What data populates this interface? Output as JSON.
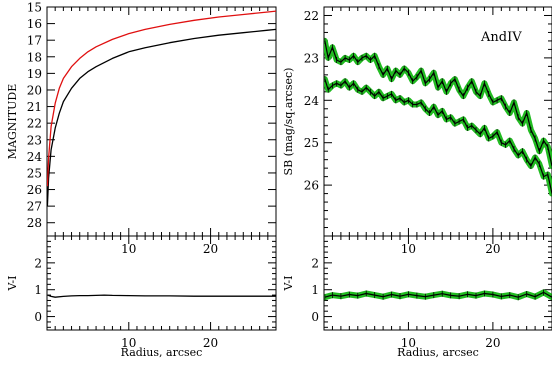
{
  "figure": {
    "legend_text": "AndIV",
    "colors": {
      "line_a": "#000000",
      "line_b": "#e01010",
      "profile_marker": "#22bb22",
      "profile_line": "#000000",
      "frame": "#000000"
    }
  },
  "chart_data": [
    {
      "id": "growth-curve",
      "type": "line",
      "title": "",
      "xlabel": "",
      "ylabel": "MAGNITUDE",
      "xlim": [
        0,
        28
      ],
      "ylim": [
        28.8,
        15
      ],
      "y_inverted": true,
      "x_ticks": [
        10,
        20
      ],
      "y_ticks": [
        15,
        16,
        17,
        18,
        19,
        20,
        21,
        22,
        23,
        24,
        25,
        26,
        27,
        28
      ],
      "series": [
        {
          "color": "#000000",
          "x": [
            0.05,
            0.2,
            0.5,
            1,
            1.5,
            2,
            3,
            4,
            5,
            6,
            8,
            10,
            12,
            15,
            18,
            21,
            24,
            27,
            28
          ],
          "y": [
            27.0,
            25.3,
            23.6,
            22.3,
            21.4,
            20.7,
            19.9,
            19.3,
            18.9,
            18.6,
            18.1,
            17.7,
            17.45,
            17.15,
            16.9,
            16.7,
            16.55,
            16.4,
            16.35
          ]
        },
        {
          "color": "#e01010",
          "x": [
            0.05,
            0.2,
            0.5,
            1,
            1.5,
            2,
            3,
            4,
            5,
            6,
            8,
            10,
            12,
            15,
            18,
            21,
            24,
            27,
            28
          ],
          "y": [
            25.8,
            24.1,
            22.2,
            20.8,
            19.9,
            19.3,
            18.6,
            18.1,
            17.7,
            17.4,
            16.95,
            16.6,
            16.35,
            16.05,
            15.8,
            15.6,
            15.45,
            15.3,
            15.25
          ]
        }
      ]
    },
    {
      "id": "color-curve",
      "type": "line",
      "title": "",
      "xlabel": "Radius, arcsec",
      "ylabel": "V-I",
      "xlim": [
        0,
        28
      ],
      "ylim": [
        -0.5,
        3
      ],
      "x_ticks": [
        10,
        20
      ],
      "y_ticks": [
        0,
        1,
        2
      ],
      "series": [
        {
          "color": "#000000",
          "x": [
            0.1,
            0.5,
            1,
            2,
            3,
            4,
            5,
            6,
            7,
            8,
            10,
            12,
            15,
            18,
            21,
            24,
            27,
            28
          ],
          "y": [
            0.8,
            0.75,
            0.72,
            0.75,
            0.77,
            0.78,
            0.78,
            0.79,
            0.8,
            0.79,
            0.78,
            0.77,
            0.77,
            0.76,
            0.76,
            0.76,
            0.76,
            0.76
          ]
        }
      ]
    },
    {
      "id": "surface-brightness",
      "type": "line",
      "title": "",
      "xlabel": "",
      "ylabel": "SB (mag/sq.arcsec)",
      "xlim": [
        0,
        27
      ],
      "ylim": [
        27.2,
        21.8
      ],
      "y_inverted": true,
      "x_ticks": [
        10,
        20
      ],
      "y_ticks": [
        22,
        23,
        24,
        25,
        26
      ],
      "legend": "top-right",
      "series": [
        {
          "color": "#000000",
          "marker_color": "#22bb22",
          "x": [
            0.1,
            0.5,
            1,
            1.5,
            2,
            2.5,
            3,
            3.5,
            4,
            4.5,
            5,
            5.5,
            6,
            6.5,
            7,
            7.5,
            8,
            8.5,
            9,
            9.5,
            10,
            10.5,
            11,
            11.5,
            12,
            12.5,
            13,
            13.5,
            14,
            14.5,
            15,
            15.5,
            16,
            16.5,
            17,
            17.5,
            18,
            18.5,
            19,
            19.5,
            20,
            20.5,
            21,
            21.5,
            22,
            22.5,
            23,
            23.5,
            24,
            24.5,
            25,
            25.5,
            26,
            26.5,
            27
          ],
          "y": [
            22.6,
            23.0,
            22.75,
            23.05,
            23.1,
            23.0,
            23.05,
            22.95,
            23.1,
            23.0,
            22.95,
            23.05,
            22.95,
            23.2,
            23.4,
            23.25,
            23.5,
            23.3,
            23.4,
            23.25,
            23.35,
            23.55,
            23.45,
            23.3,
            23.6,
            23.5,
            23.35,
            23.7,
            23.55,
            23.8,
            23.6,
            23.5,
            23.75,
            23.9,
            23.7,
            23.55,
            23.8,
            23.9,
            23.6,
            23.85,
            24.05,
            24.0,
            23.95,
            24.15,
            24.3,
            24.05,
            24.4,
            24.55,
            24.3,
            24.7,
            24.9,
            25.2,
            24.95,
            25.1,
            25.55
          ]
        },
        {
          "color": "#000000",
          "marker_color": "#22bb22",
          "x": [
            0.1,
            0.5,
            1,
            1.5,
            2,
            2.5,
            3,
            3.5,
            4,
            4.5,
            5,
            5.5,
            6,
            6.5,
            7,
            7.5,
            8,
            8.5,
            9,
            9.5,
            10,
            10.5,
            11,
            11.5,
            12,
            12.5,
            13,
            13.5,
            14,
            14.5,
            15,
            15.5,
            16,
            16.5,
            17,
            17.5,
            18,
            18.5,
            19,
            19.5,
            20,
            20.5,
            21,
            21.5,
            22,
            22.5,
            23,
            23.5,
            24,
            24.5,
            25,
            25.5,
            26,
            26.5,
            27
          ],
          "y": [
            23.5,
            23.75,
            23.65,
            23.6,
            23.65,
            23.55,
            23.7,
            23.6,
            23.75,
            23.8,
            23.7,
            23.8,
            23.9,
            23.8,
            23.95,
            23.9,
            23.85,
            24.0,
            23.95,
            24.05,
            24.0,
            24.1,
            24.1,
            24.05,
            24.2,
            24.3,
            24.15,
            24.35,
            24.25,
            24.45,
            24.4,
            24.55,
            24.5,
            24.45,
            24.65,
            24.6,
            24.7,
            24.8,
            24.65,
            24.9,
            24.85,
            24.75,
            25.0,
            25.05,
            24.95,
            25.15,
            25.3,
            25.2,
            25.4,
            25.55,
            25.35,
            25.5,
            25.8,
            25.75,
            26.2
          ]
        }
      ]
    },
    {
      "id": "profile-color",
      "type": "line",
      "title": "",
      "xlabel": "Radius, arcsec",
      "ylabel": "V-I",
      "xlim": [
        0,
        27
      ],
      "ylim": [
        -0.5,
        3
      ],
      "x_ticks": [
        10,
        20
      ],
      "y_ticks": [
        0,
        1,
        2
      ],
      "series": [
        {
          "color": "#000000",
          "marker_color": "#22bb22",
          "x": [
            0.1,
            1,
            2,
            3,
            4,
            5,
            6,
            7,
            8,
            9,
            10,
            11,
            12,
            13,
            14,
            15,
            16,
            17,
            18,
            19,
            20,
            21,
            22,
            23,
            24,
            25,
            26,
            27
          ],
          "y": [
            0.72,
            0.8,
            0.76,
            0.82,
            0.78,
            0.86,
            0.8,
            0.74,
            0.82,
            0.76,
            0.83,
            0.78,
            0.74,
            0.8,
            0.85,
            0.79,
            0.76,
            0.83,
            0.78,
            0.86,
            0.82,
            0.75,
            0.8,
            0.72,
            0.84,
            0.74,
            0.9,
            0.72
          ]
        }
      ]
    }
  ]
}
